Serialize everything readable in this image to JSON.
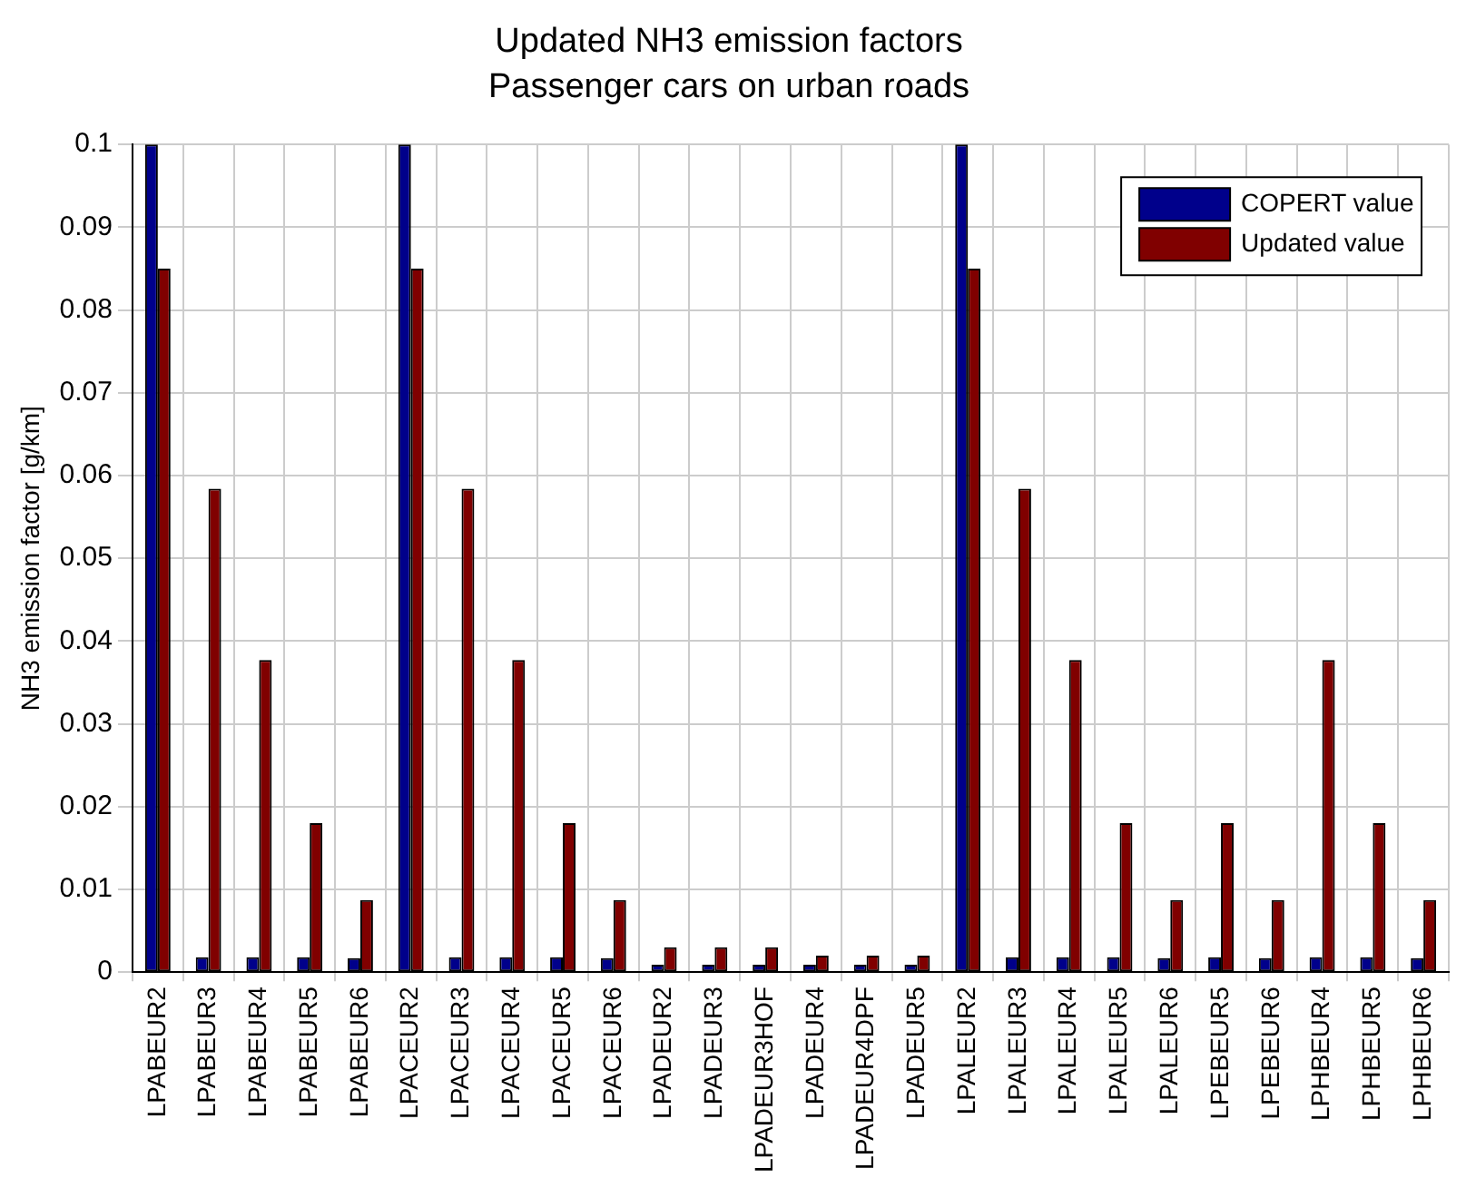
{
  "chart_data": {
    "type": "bar",
    "title": "Updated NH3 emission factors",
    "subtitle": "Passenger cars on urban roads",
    "ylabel": "NH3 emission factor [g/km]",
    "categories": [
      "LPABEUR2",
      "LPABEUR3",
      "LPABEUR4",
      "LPABEUR5",
      "LPABEUR6",
      "LPACEUR2",
      "LPACEUR3",
      "LPACEUR4",
      "LPACEUR5",
      "LPACEUR6",
      "LPADEUR2",
      "LPADEUR3",
      "LPADEUR3HOF",
      "LPADEUR4",
      "LPADEUR4DPF",
      "LPADEUR5",
      "LPALEUR2",
      "LPALEUR3",
      "LPALEUR4",
      "LPALEUR5",
      "LPALEUR6",
      "LPEBEUR5",
      "LPEBEUR6",
      "LPHBEUR4",
      "LPHBEUR5",
      "LPHBEUR6"
    ],
    "series": [
      {
        "name": "COPERT value",
        "color": "#00008b",
        "values": [
          0.1,
          0.0018,
          0.0018,
          0.0018,
          0.0017,
          0.1,
          0.0018,
          0.0018,
          0.0018,
          0.0017,
          0.0009,
          0.0009,
          0.0009,
          0.0009,
          0.0009,
          0.0009,
          0.1,
          0.0018,
          0.0018,
          0.0018,
          0.0017,
          0.0018,
          0.0017,
          0.0018,
          0.0018,
          0.0017
        ]
      },
      {
        "name": "Updated value",
        "color": "#800000",
        "values": [
          0.085,
          0.0584,
          0.0377,
          0.018,
          0.0087,
          0.085,
          0.0584,
          0.0377,
          0.018,
          0.0087,
          0.003,
          0.003,
          0.003,
          0.002,
          0.002,
          0.002,
          0.085,
          0.0584,
          0.0377,
          0.018,
          0.0087,
          0.018,
          0.0087,
          0.0377,
          0.018,
          0.0087
        ]
      }
    ],
    "ylim": [
      0,
      0.1
    ],
    "yticks": [
      0,
      0.01,
      0.02,
      0.03,
      0.04,
      0.05,
      0.06,
      0.07,
      0.08,
      0.09,
      0.1
    ],
    "grid": true,
    "legend": "top right"
  }
}
